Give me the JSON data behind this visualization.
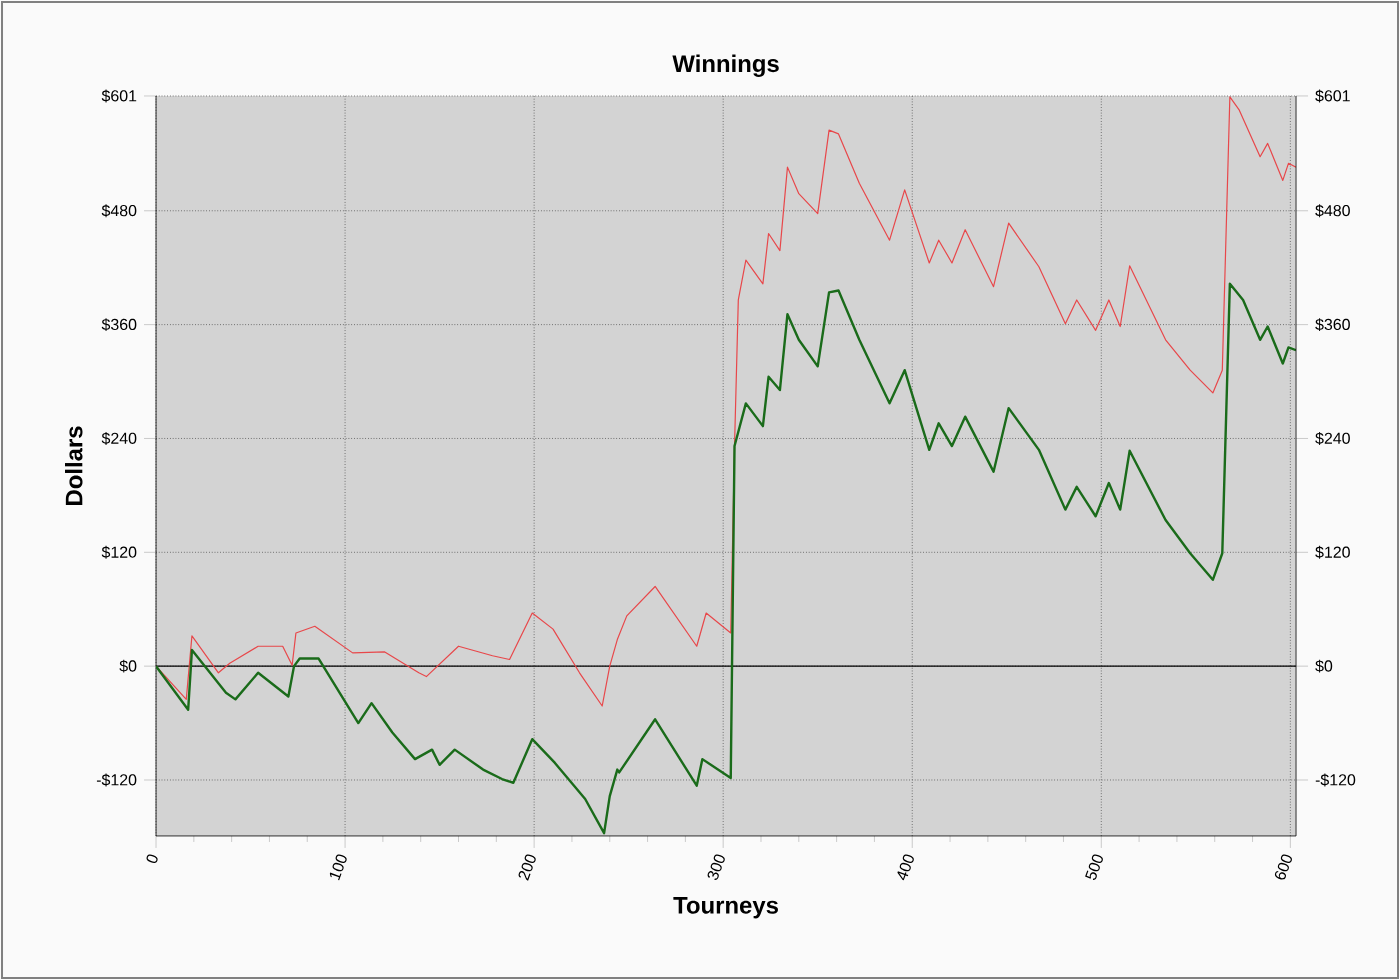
{
  "chart_data": {
    "type": "line",
    "title": "Winnings",
    "xlabel": "Tourneys",
    "ylabel": "Dollars",
    "xlim": [
      0,
      603
    ],
    "xticks": [
      0,
      100,
      200,
      300,
      400,
      500,
      600
    ],
    "ylim": [
      -179,
      601
    ],
    "yticks": [
      {
        "value": -120,
        "label": "-$120"
      },
      {
        "value": 0,
        "label": "$0"
      },
      {
        "value": 120,
        "label": "$120"
      },
      {
        "value": 240,
        "label": "$240"
      },
      {
        "value": 360,
        "label": "$360"
      },
      {
        "value": 480,
        "label": "$480"
      },
      {
        "value": 601,
        "label": "$601"
      }
    ],
    "y2lim": [
      -179,
      601
    ],
    "y2ticks": [
      {
        "value": -120,
        "label": "-$120"
      },
      {
        "value": 0,
        "label": "$0"
      },
      {
        "value": 120,
        "label": "$120"
      },
      {
        "value": 240,
        "label": "$240"
      },
      {
        "value": 360,
        "label": "$360"
      },
      {
        "value": 480,
        "label": "$480"
      },
      {
        "value": 601,
        "label": "$601"
      }
    ],
    "grid": true,
    "ref_lines": [
      {
        "axis": "y",
        "value": 0,
        "color": "#000000"
      }
    ],
    "series": [
      {
        "color": "#e8474a",
        "x": [
          0,
          16,
          19,
          33,
          39,
          54,
          67,
          72,
          74,
          84,
          104,
          121,
          139,
          143,
          160,
          178,
          187,
          199,
          210,
          224,
          236,
          240,
          244,
          249,
          264,
          286,
          291,
          304,
          306,
          308,
          312,
          321,
          324,
          330,
          334,
          340,
          350,
          356,
          361,
          372,
          388,
          396,
          409,
          414,
          421,
          428,
          443,
          451,
          467,
          481,
          487,
          497,
          504,
          510,
          515,
          534,
          547,
          559,
          564,
          568,
          573,
          584,
          588,
          596,
          599,
          603
        ],
        "values": [
          0,
          -35,
          32,
          -7,
          3,
          21,
          21,
          1,
          35,
          42,
          14,
          15,
          -7,
          -11,
          21,
          11,
          7,
          56,
          39,
          -7,
          -42,
          0,
          28,
          53,
          84,
          21,
          56,
          35,
          232,
          386,
          428,
          403,
          456,
          438,
          526,
          498,
          477,
          565,
          561,
          509,
          449,
          502,
          425,
          449,
          425,
          460,
          400,
          467,
          421,
          361,
          386,
          354,
          386,
          358,
          422,
          344,
          312,
          288,
          312,
          600,
          586,
          537,
          551,
          512,
          530,
          526
        ]
      },
      {
        "color": "#1a6b1a",
        "x": [
          0,
          17,
          19,
          37,
          42,
          54,
          70,
          73,
          76,
          86,
          107,
          114,
          125,
          137,
          146,
          150,
          158,
          173,
          183,
          189,
          199,
          211,
          227,
          237,
          240,
          244,
          245,
          264,
          286,
          289,
          304,
          306,
          312,
          321,
          324,
          330,
          334,
          340,
          350,
          356,
          361,
          372,
          388,
          396,
          409,
          414,
          421,
          428,
          443,
          451,
          467,
          481,
          487,
          497,
          504,
          510,
          515,
          534,
          547,
          559,
          564,
          568,
          575,
          584,
          588,
          596,
          599,
          603
        ],
        "values": [
          0,
          -46,
          17,
          -28,
          -35,
          -7,
          -32,
          0,
          8,
          8,
          -60,
          -39,
          -70,
          -98,
          -88,
          -104,
          -88,
          -109,
          -119,
          -123,
          -77,
          -102,
          -140,
          -176,
          -137,
          -109,
          -112,
          -56,
          -126,
          -98,
          -118,
          232,
          277,
          253,
          305,
          291,
          371,
          344,
          316,
          394,
          396,
          344,
          277,
          312,
          228,
          256,
          232,
          263,
          205,
          272,
          228,
          165,
          189,
          158,
          193,
          165,
          227,
          154,
          119,
          91,
          119,
          403,
          386,
          344,
          358,
          319,
          336,
          333
        ]
      }
    ]
  }
}
